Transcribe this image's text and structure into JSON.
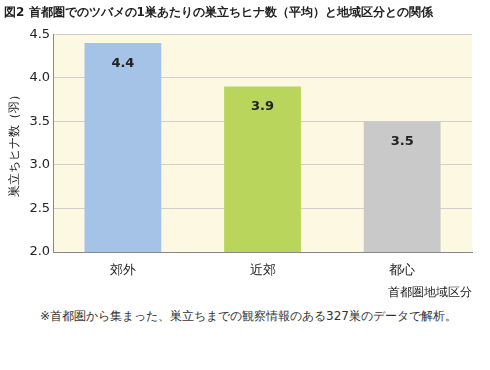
{
  "chart_data": {
    "type": "bar",
    "title": "図2 首都圏でのツバメの1巣あたりの巣立ちヒナ数（平均）と地域区分との関係",
    "y_label": "巣立ちヒナ数（羽）",
    "x_label": "首都圏地域区分",
    "annotations": [
      "※首都圏から集まった、巣立ちまでの観察情報のある327巣のデータで解析。"
    ],
    "categories": [
      "郊外",
      "近郊",
      "都心"
    ],
    "values": [
      4.4,
      3.9,
      3.5
    ],
    "colors": [
      "#a4c3e6",
      "#b9d55c",
      "#c9c9c9"
    ],
    "ylim": [
      2.0,
      4.5
    ],
    "yticks": [
      {
        "value": 2,
        "label": "2.0"
      },
      2.5,
      {
        "value": 3,
        "label": "3.0"
      },
      3.5,
      {
        "value": 4,
        "label": "4.0"
      },
      4.5
    ],
    "grid": true,
    "data_labels": true
  }
}
